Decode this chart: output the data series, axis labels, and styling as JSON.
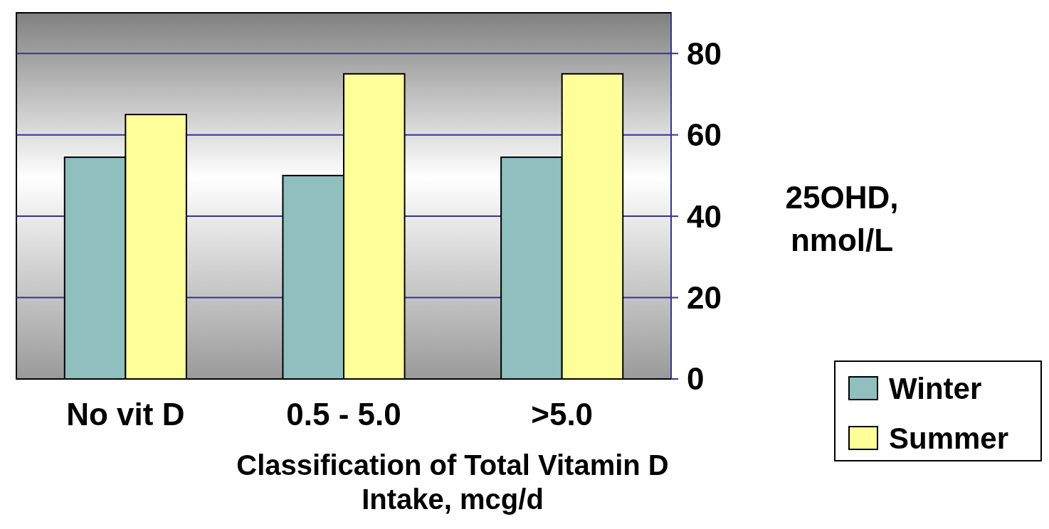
{
  "chart_data": {
    "type": "bar",
    "categories": [
      "No vit D",
      "0.5 - 5.0",
      ">5.0"
    ],
    "series": [
      {
        "name": "Winter",
        "color": "#8fbfbf",
        "values": [
          54.5,
          50,
          54.5
        ]
      },
      {
        "name": "Summer",
        "color": "#ffff99",
        "values": [
          65,
          75,
          75
        ]
      }
    ],
    "xlabel": "Classification of Total Vitamin D Intake, mcg/d",
    "ylabel": "25OHD, nmol/L",
    "ylim": [
      0,
      90
    ],
    "yticks": [
      0,
      20,
      40,
      60,
      80
    ],
    "grid": "y",
    "legend": "bottom right"
  }
}
